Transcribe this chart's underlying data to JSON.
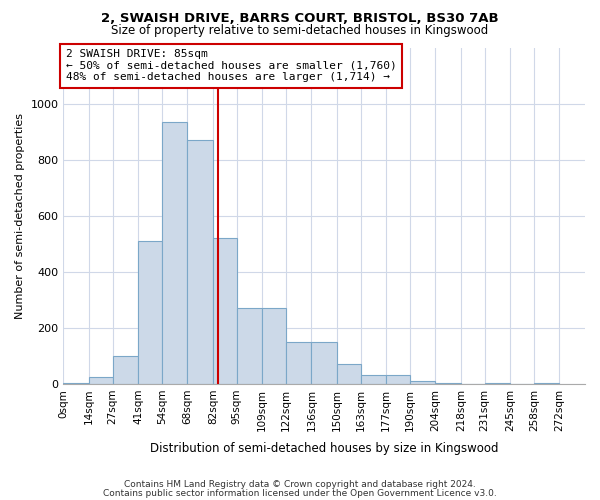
{
  "title": "2, SWAISH DRIVE, BARRS COURT, BRISTOL, BS30 7AB",
  "subtitle": "Size of property relative to semi-detached houses in Kingswood",
  "xlabel": "Distribution of semi-detached houses by size in Kingswood",
  "ylabel": "Number of semi-detached properties",
  "footnote1": "Contains HM Land Registry data © Crown copyright and database right 2024.",
  "footnote2": "Contains public sector information licensed under the Open Government Licence v3.0.",
  "bin_edges": [
    0,
    14,
    27,
    41,
    54,
    68,
    82,
    95,
    109,
    122,
    136,
    150,
    163,
    177,
    190,
    204,
    218,
    231,
    245,
    258,
    272
  ],
  "bar_heights": [
    5,
    25,
    100,
    510,
    935,
    870,
    520,
    270,
    270,
    150,
    150,
    70,
    30,
    30,
    10,
    5,
    0,
    5,
    0,
    5
  ],
  "bar_color": "#ccd9e8",
  "bar_edgecolor": "#7ba7c8",
  "property_value": 85,
  "property_label": "2 SWAISH DRIVE: 85sqm",
  "annotation_line1": "← 50% of semi-detached houses are smaller (1,760)",
  "annotation_line2": "48% of semi-detached houses are larger (1,714) →",
  "annotation_box_edgecolor": "#cc0000",
  "vline_color": "#cc0000",
  "ylim": [
    0,
    1200
  ],
  "yticks": [
    0,
    200,
    400,
    600,
    800,
    1000
  ],
  "tick_labels": [
    "0sqm",
    "14sqm",
    "27sqm",
    "41sqm",
    "54sqm",
    "68sqm",
    "82sqm",
    "95sqm",
    "109sqm",
    "122sqm",
    "136sqm",
    "150sqm",
    "163sqm",
    "177sqm",
    "190sqm",
    "204sqm",
    "218sqm",
    "231sqm",
    "245sqm",
    "258sqm",
    "272sqm"
  ],
  "background_color": "#ffffff",
  "grid_color": "#d0d8e8",
  "title_fontsize": 9.5,
  "subtitle_fontsize": 8.5,
  "annotation_fontsize": 8.0
}
